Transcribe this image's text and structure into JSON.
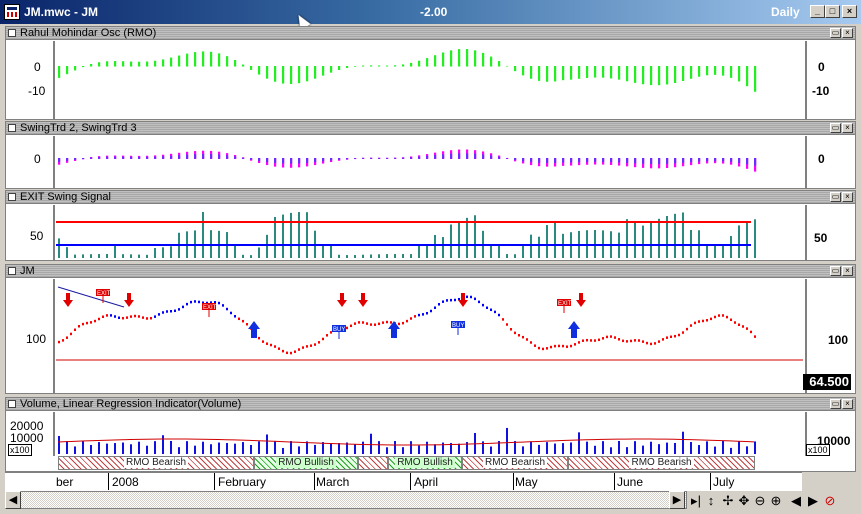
{
  "window": {
    "title": "JM.mwc - JM",
    "center_value": "-2.00",
    "period": "Daily"
  },
  "colors": {
    "green": "#22ee22",
    "magenta": "#ff00ff",
    "blue": "#0000ff",
    "red": "#ff0000",
    "teal": "#2a8a80"
  },
  "panes": [
    {
      "title": "Rahul Mohindar Osc (RMO)",
      "left_ticks": [
        "0",
        "-10"
      ],
      "right_ticks": [
        "0",
        "-10"
      ]
    },
    {
      "title": "SwingTrd 2, SwingTrd 3",
      "left_ticks": [
        "0"
      ],
      "right_ticks": [
        "0"
      ]
    },
    {
      "title": "EXIT Swing Signal",
      "left_ticks": [
        "50"
      ],
      "right_ticks": [
        "50"
      ]
    },
    {
      "title": "JM",
      "left_ticks": [
        "100"
      ],
      "right_ticks": [
        "100"
      ],
      "last_price": "64.500"
    },
    {
      "title": "Volume, Linear Regression Indicator(Volume)",
      "left_ticks": [
        "20000",
        "10000"
      ],
      "left_unit": "x100",
      "right_ticks": [
        "10000"
      ],
      "right_unit": "x100"
    }
  ],
  "signals": {
    "exit_label": "EXIT",
    "buy_label": "BUY"
  },
  "ribbon": [
    {
      "label": "RMO Bearish",
      "type": "bear"
    },
    {
      "label": "RMO Bullish",
      "type": "bull"
    },
    {
      "label": "RMO Bullish",
      "type": "bull"
    },
    {
      "label": "RMO Bearish",
      "type": "bear"
    },
    {
      "label": "RMO Bearish",
      "type": "bear"
    }
  ],
  "time_axis": [
    "ber",
    "2008",
    "February",
    "March",
    "April",
    "May",
    "June",
    "July"
  ],
  "icons": [
    "minimize-icon",
    "restore-icon",
    "close-icon",
    "scroll-left-icon",
    "scroll-right-icon",
    "next-icon",
    "zoom-in-icon",
    "zoom-out-icon",
    "cross-icon",
    "no-entry-icon"
  ]
}
